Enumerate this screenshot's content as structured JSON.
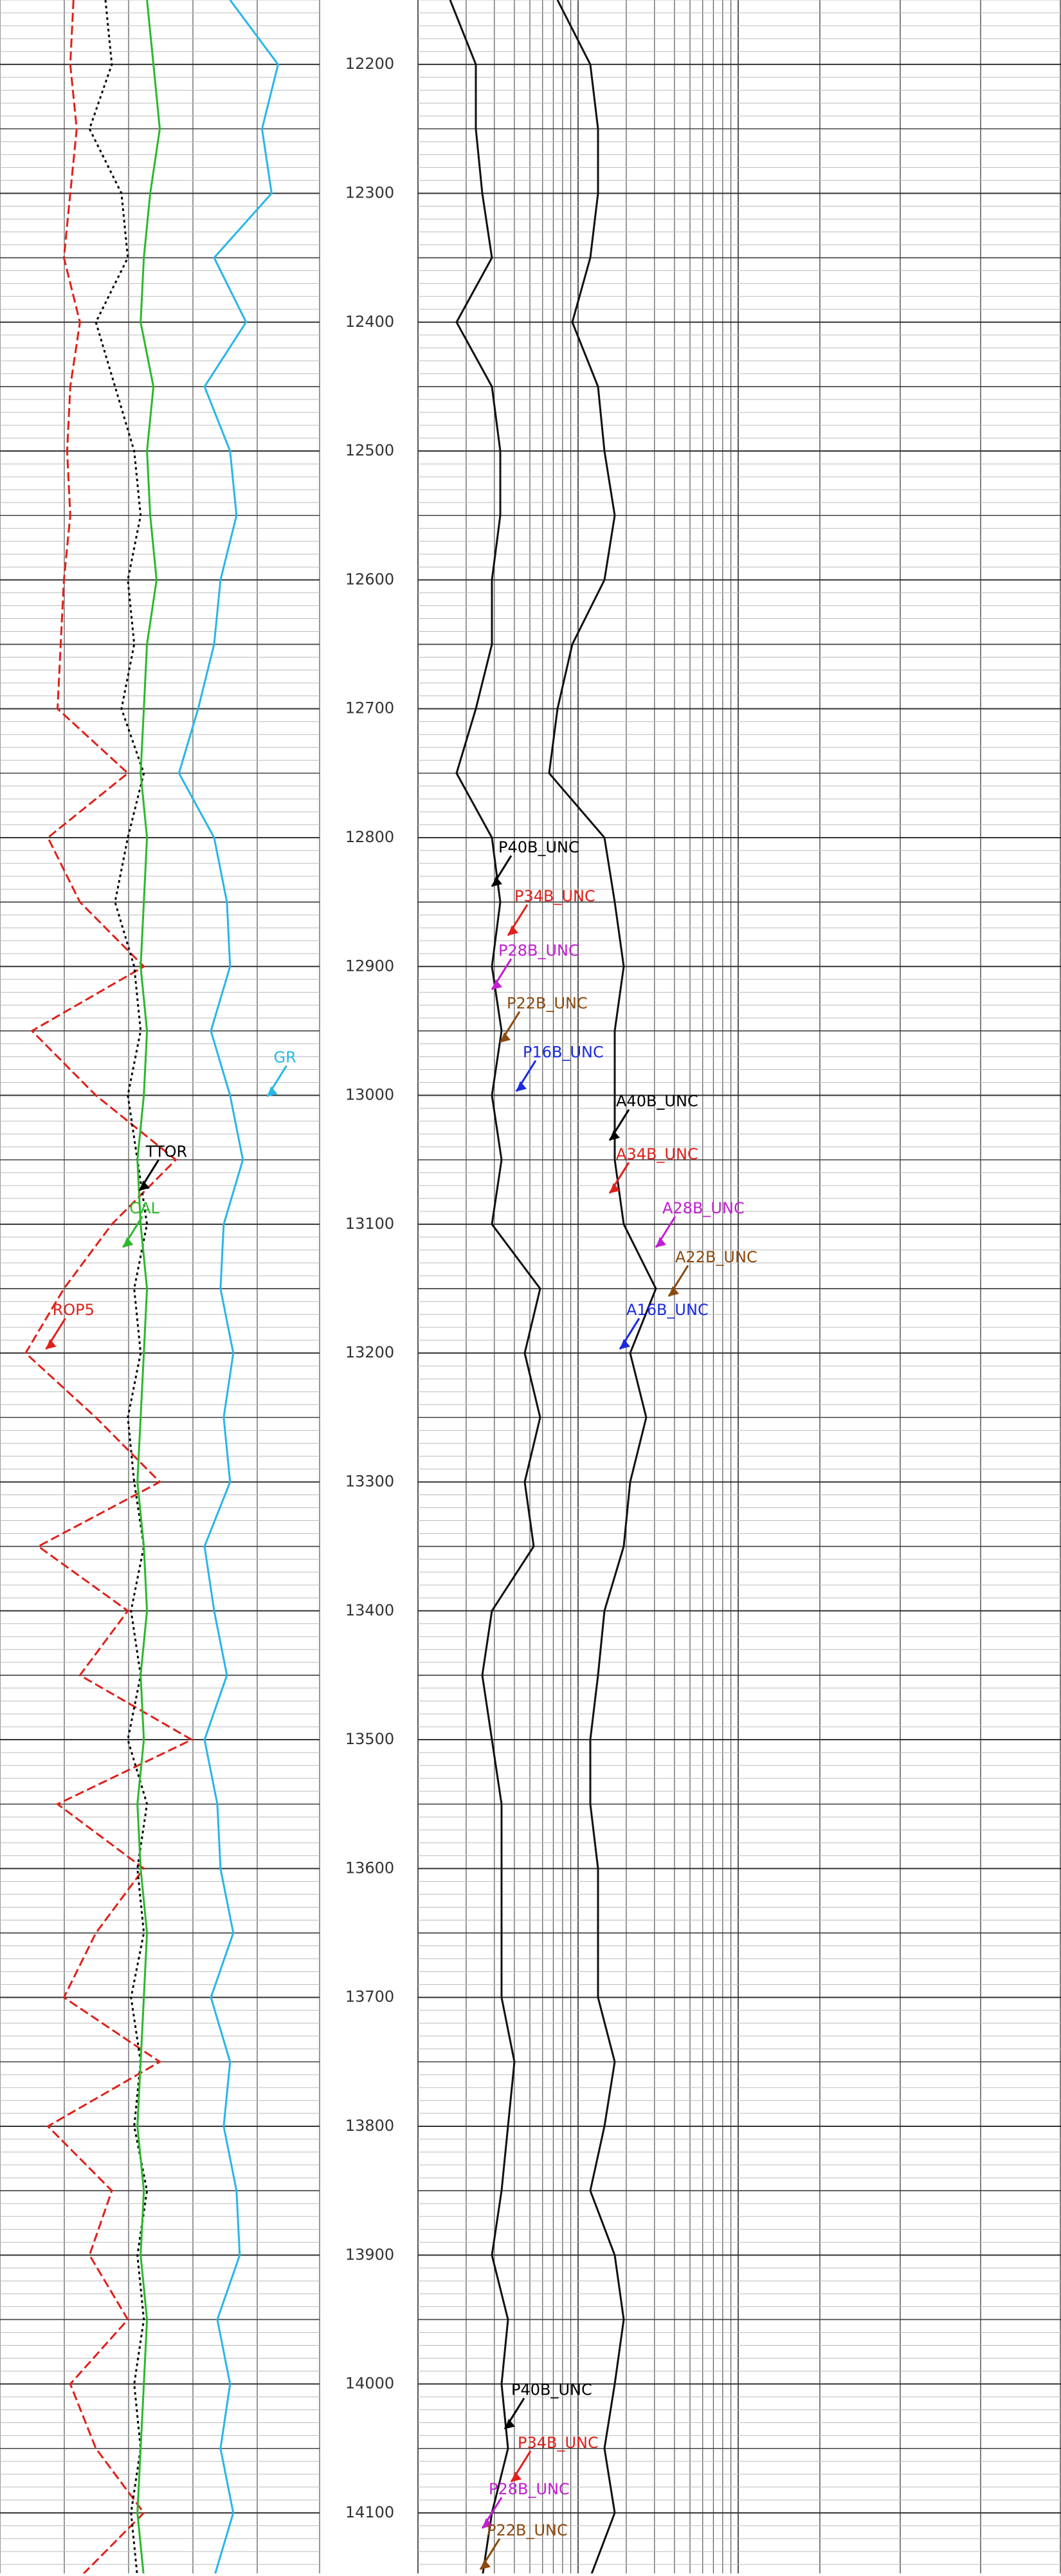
{
  "chart_data": {
    "type": "well-log",
    "ylim": [
      12150,
      14147
    ],
    "yticks": [
      12200,
      12300,
      12400,
      12500,
      12600,
      12700,
      12800,
      12900,
      13000,
      13100,
      13200,
      13300,
      13400,
      13500,
      13600,
      13700,
      13800,
      13900,
      14000,
      14100
    ],
    "depth": [
      12150,
      12200,
      12250,
      12300,
      12350,
      12400,
      12450,
      12500,
      12550,
      12600,
      12650,
      12700,
      12750,
      12800,
      12850,
      12900,
      12950,
      13000,
      13050,
      13100,
      13150,
      13200,
      13250,
      13300,
      13350,
      13400,
      13450,
      13500,
      13550,
      13600,
      13650,
      13700,
      13750,
      13800,
      13850,
      13900,
      13950,
      14000,
      14050,
      14100,
      14150
    ],
    "tracks": [
      {
        "xlim": [
          0,
          100
        ],
        "scale": "linear",
        "series": [
          {
            "color": "#29b6e8",
            "style": "solid",
            "values": [
              72,
              87,
              82,
              85,
              67,
              77,
              64,
              72,
              74,
              69,
              67,
              62,
              56,
              67,
              71,
              72,
              66,
              72,
              76,
              70,
              69,
              73,
              70,
              72,
              64,
              67,
              71,
              64,
              68,
              69,
              73,
              66,
              72,
              70,
              74,
              75,
              68,
              72,
              69,
              73,
              67
            ]
          },
          {
            "color": "#e0201a",
            "style": "dashed",
            "values": [
              23,
              22,
              24,
              22,
              20,
              25,
              22,
              21,
              22,
              20,
              19,
              18,
              40,
              15,
              25,
              45,
              10,
              30,
              55,
              35,
              20,
              8,
              30,
              50,
              12,
              40,
              25,
              60,
              18,
              45,
              30,
              20,
              50,
              15,
              35,
              28,
              40,
              22,
              30,
              45,
              25
            ]
          },
          {
            "color": "#000000",
            "style": "dotted",
            "values": [
              33,
              35,
              28,
              38,
              40,
              30,
              36,
              42,
              44,
              40,
              42,
              38,
              45,
              40,
              36,
              42,
              44,
              40,
              43,
              46,
              42,
              44,
              40,
              42,
              45,
              41,
              44,
              40,
              46,
              43,
              45,
              41,
              44,
              42,
              46,
              43,
              45,
              42,
              44,
              41,
              43
            ]
          },
          {
            "color": "#2cb82c",
            "style": "solid",
            "values": [
              46,
              48,
              50,
              47,
              45,
              44,
              48,
              46,
              47,
              49,
              46,
              45,
              44,
              46,
              45,
              44,
              46,
              45,
              43,
              44,
              46,
              45,
              44,
              43,
              45,
              46,
              44,
              45,
              43,
              44,
              46,
              45,
              44,
              43,
              45,
              44,
              46,
              45,
              44,
              43,
              45
            ]
          }
        ]
      },
      {
        "xlim": [
          0,
          100
        ],
        "scale": "log",
        "series": [
          {
            "color": "#111111",
            "style": "solid",
            "values": [
              5,
              9,
              9,
              10,
              11.5,
              6,
              11.5,
              12.8,
              12.8,
              11.5,
              11.5,
              9,
              6,
              11.5,
              12.8,
              11.5,
              13,
              11.5,
              13,
              11.5,
              19,
              16.6,
              19,
              16.6,
              18,
              11.5,
              10,
              11.5,
              13,
              13,
              13,
              13,
              15,
              14,
              13,
              11.5,
              14,
              13,
              14,
              11.5,
              10
            ]
          },
          {
            "color": "#111111",
            "style": "solid",
            "values": [
              21.7,
              26.8,
              28,
              28,
              26.8,
              24,
              28,
              29,
              30.6,
              29,
              24,
              21.7,
              20.4,
              29,
              30.6,
              32,
              30.6,
              30.6,
              30.6,
              32,
              37,
              33,
              35.5,
              33,
              32,
              29,
              28,
              26.8,
              26.8,
              28,
              28,
              28,
              30.6,
              29,
              26.8,
              30.6,
              32,
              30.6,
              29,
              30.6,
              26.8
            ]
          }
        ]
      }
    ],
    "annotations": [
      {
        "track": 1,
        "text": "P40B_UNC",
        "color": "#000000",
        "depth": 12838,
        "x": 11.5
      },
      {
        "track": 1,
        "text": "P34B_UNC",
        "color": "#e0201a",
        "depth": 12876,
        "x": 14
      },
      {
        "track": 1,
        "text": "P28B_UNC",
        "color": "#c020d0",
        "depth": 12918,
        "x": 11.5
      },
      {
        "track": 1,
        "text": "P22B_UNC",
        "color": "#8b4a10",
        "depth": 12959,
        "x": 12.8
      },
      {
        "track": 1,
        "text": "P16B_UNC",
        "color": "#1a2ae0",
        "depth": 12997,
        "x": 15.3
      },
      {
        "track": 1,
        "text": "A40B_UNC",
        "color": "#000000",
        "depth": 13035,
        "x": 29.8
      },
      {
        "track": 1,
        "text": "A34B_UNC",
        "color": "#e0201a",
        "depth": 13076,
        "x": 29.8
      },
      {
        "track": 1,
        "text": "A28B_UNC",
        "color": "#c020d0",
        "depth": 13118,
        "x": 37
      },
      {
        "track": 1,
        "text": "A22B_UNC",
        "color": "#8b4a10",
        "depth": 13156,
        "x": 39
      },
      {
        "track": 1,
        "text": "A16B_UNC",
        "color": "#1a2ae0",
        "depth": 13197,
        "x": 31.4
      },
      {
        "track": 1,
        "text": "P40B_UNC",
        "color": "#000000",
        "depth": 14035,
        "x": 13.5
      },
      {
        "track": 1,
        "text": "P34B_UNC",
        "color": "#e0201a",
        "depth": 14076,
        "x": 14.5
      },
      {
        "track": 1,
        "text": "P28B_UNC",
        "color": "#c020d0",
        "depth": 14112,
        "x": 10
      },
      {
        "track": 1,
        "text": "P22B_UNC",
        "color": "#8b4a10",
        "depth": 14144,
        "x": 9.7
      },
      {
        "track": 0,
        "text": "GR",
        "color": "#29b6e8",
        "depth": 13001,
        "x": 83.6
      },
      {
        "track": 0,
        "text": "TTOR",
        "color": "#000000",
        "depth": 13074,
        "x": 43.6
      },
      {
        "track": 0,
        "text": "CAL",
        "color": "#2cb82c",
        "depth": 13118,
        "x": 38.5
      },
      {
        "track": 0,
        "text": "ROP5",
        "color": "#e0201a",
        "depth": 13197,
        "x": 14.4
      }
    ]
  }
}
